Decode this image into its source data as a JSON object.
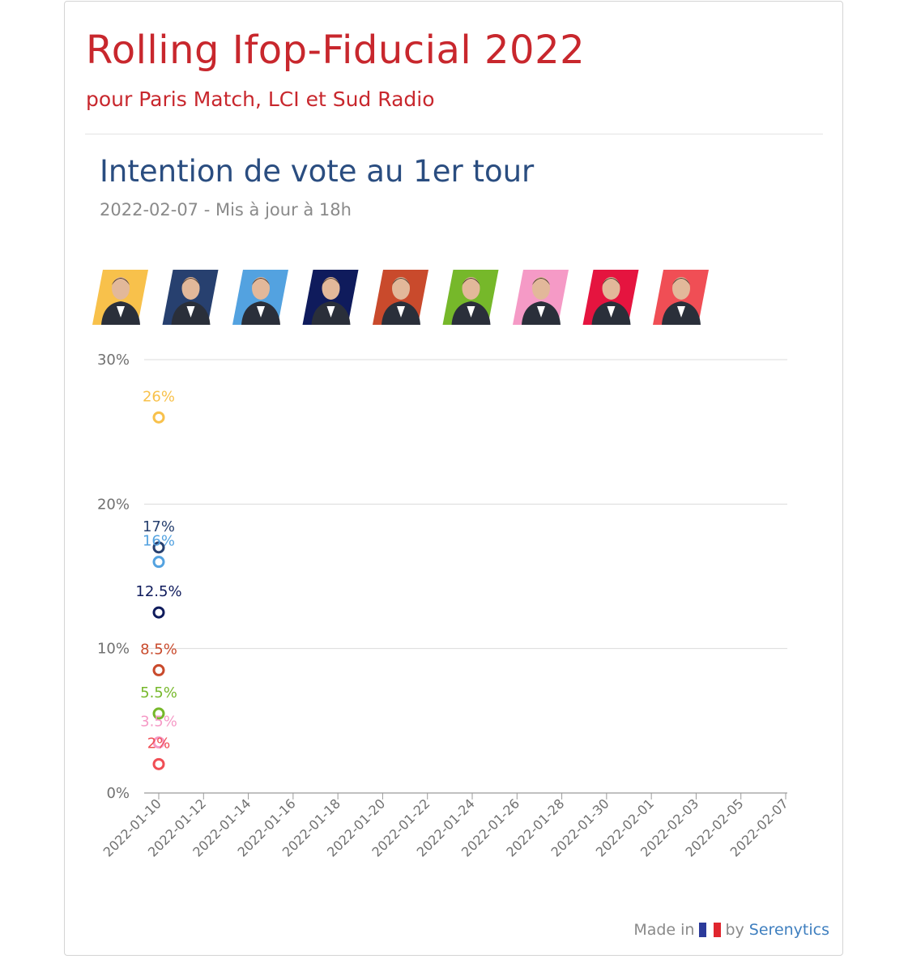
{
  "header": {
    "title": "Rolling Ifop-Fiducial 2022",
    "subtitle": "pour Paris Match, LCI et Sud Radio"
  },
  "chart_header": {
    "title": "Intention de vote au 1er tour",
    "subtitle": "2022-02-07 - Mis à jour à 18h"
  },
  "candidates": [
    {
      "icon": "candidate-photo-1",
      "color": "#f8c14b"
    },
    {
      "icon": "candidate-photo-2",
      "color": "#27406f"
    },
    {
      "icon": "candidate-photo-3",
      "color": "#53a2e0"
    },
    {
      "icon": "candidate-photo-4",
      "color": "#0f1b5c"
    },
    {
      "icon": "candidate-photo-5",
      "color": "#c94a2c"
    },
    {
      "icon": "candidate-photo-6",
      "color": "#76b82a"
    },
    {
      "icon": "candidate-photo-7",
      "color": "#f59ac6"
    },
    {
      "icon": "candidate-photo-8",
      "color": "#e5143f"
    },
    {
      "icon": "candidate-photo-9",
      "color": "#f04e55"
    }
  ],
  "chart_data": {
    "type": "scatter",
    "x_ticks": [
      "2022-01-10",
      "2022-01-12",
      "2022-01-14",
      "2022-01-16",
      "2022-01-18",
      "2022-01-20",
      "2022-01-22",
      "2022-01-24",
      "2022-01-26",
      "2022-01-28",
      "2022-01-30",
      "2022-02-01",
      "2022-02-03",
      "2022-02-05",
      "2022-02-07"
    ],
    "xlim": [
      "2022-01-10",
      "2022-02-07"
    ],
    "ylim": [
      0,
      30
    ],
    "y_ticks": [
      "0%",
      "10%",
      "20%",
      "30%"
    ],
    "y_tick_values": [
      0,
      10,
      20,
      30
    ],
    "grid": true,
    "series": [
      {
        "x": "2022-01-10",
        "y": 26,
        "label": "26%",
        "color": "#f8c14b"
      },
      {
        "x": "2022-01-10",
        "y": 17,
        "label": "17%",
        "color": "#27406f"
      },
      {
        "x": "2022-01-10",
        "y": 16,
        "label": "16%",
        "color": "#53a2e0"
      },
      {
        "x": "2022-01-10",
        "y": 12.5,
        "label": "12.5%",
        "color": "#0f1b5c"
      },
      {
        "x": "2022-01-10",
        "y": 8.5,
        "label": "8.5%",
        "color": "#c94a2c"
      },
      {
        "x": "2022-01-10",
        "y": 5.5,
        "label": "5.5%",
        "color": "#76b82a"
      },
      {
        "x": "2022-01-10",
        "y": 3.5,
        "label": "3.5%",
        "color": "#f59ac6"
      },
      {
        "x": "2022-01-10",
        "y": 2,
        "label": "2%",
        "color": "#f04e55"
      }
    ]
  },
  "footer": {
    "made_in": "Made in",
    "by": "by",
    "brand": "Serenytics",
    "flag_colors": [
      "#2b3a9a",
      "#ffffff",
      "#e0262e"
    ]
  }
}
